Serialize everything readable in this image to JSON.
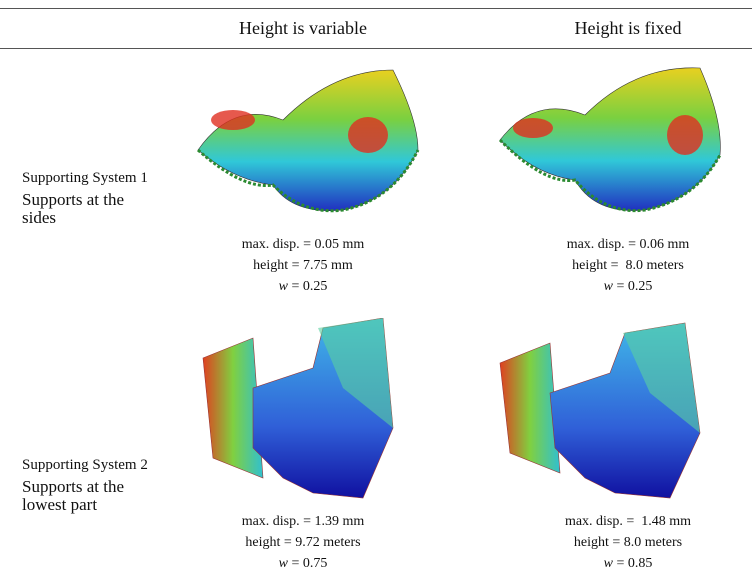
{
  "table": {
    "headers": [
      "Height is variable",
      "Height is fixed"
    ],
    "rows": [
      {
        "label": "Supporting System 1",
        "sublabel": "Supports at the sides",
        "cells": [
          {
            "lines": [
              "max. disp. = 0.05 mm",
              "height = 7.75 mm"
            ],
            "w_symbol": "w",
            "w_value": " = 0.25"
          },
          {
            "lines": [
              "max. disp. = 0.06 mm",
              "height =  8.0 meters"
            ],
            "w_symbol": "w",
            "w_value": " = 0.25"
          }
        ]
      },
      {
        "label": "Supporting System 2",
        "sublabel": "Supports at the lowest part",
        "cells": [
          {
            "lines": [
              "max. disp. = 1.39 mm",
              "height = 9.72 meters"
            ],
            "w_symbol": "w",
            "w_value": " = 0.75"
          },
          {
            "lines": [
              "max. disp. =  1.48 mm",
              "height = 8.0 meters"
            ],
            "w_symbol": "w",
            "w_value": " = 0.85"
          }
        ]
      }
    ]
  }
}
